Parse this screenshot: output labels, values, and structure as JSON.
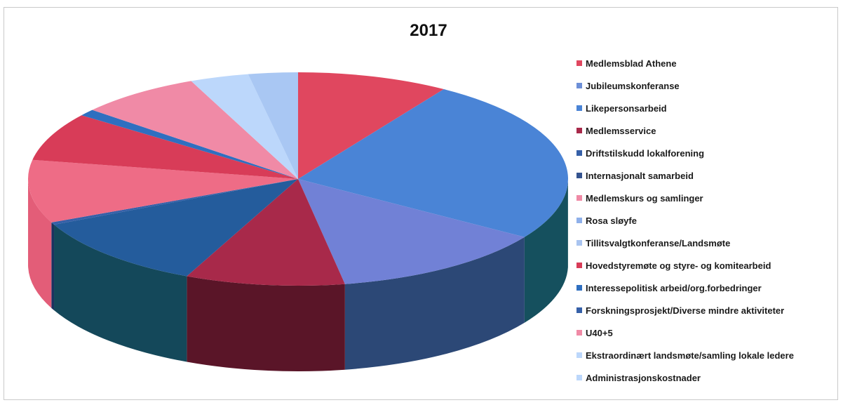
{
  "chart_data": {
    "type": "pie",
    "title": "2017",
    "legend_position": "right",
    "series": [
      {
        "name": "Medlemsblad Athene",
        "value": 9.8,
        "color": "#e0475f",
        "side": "#7e1a2c"
      },
      {
        "name": "Jubileumskonferanse",
        "value": 0.0,
        "color": "#6d8fd7",
        "side": "#2c4876"
      },
      {
        "name": "Likepersonsarbeid",
        "value": 27.1,
        "color": "#4a84d6",
        "side": "#15505e"
      },
      {
        "name": "Medlemsservice",
        "value": 0.0,
        "color": "#a8294a",
        "side": "#5a1528"
      },
      {
        "name": "Driftstilskudd lokalforening",
        "value": 0.0,
        "color": "#3660a8",
        "side": "#1c3360"
      },
      {
        "name": "Internasjonalt samarbeid",
        "value": 0.0,
        "color": "#34538f",
        "side": "#1c2e55"
      },
      {
        "name": "Medlemskurs og samlinger",
        "value": 14.1,
        "color": "#7181d6",
        "side": "#2c4876"
      },
      {
        "name": "Rosa sløyfe",
        "value": 0.0,
        "color": "#8fb0ea",
        "side": "#4d6690"
      },
      {
        "name": "Tillitsvalgtkonferanse/Landsmøte",
        "value": 0.0,
        "color": "#a9c4f0",
        "side": "#5f7596"
      },
      {
        "name": "Hovedstyremøte og styre- og komitearbeid",
        "value": 10.3,
        "color": "#a8294a",
        "side": "#5a1528"
      },
      {
        "name": "Interessepolitisk arbeid/org.forbedringer",
        "value": 12.1,
        "color": "#245c9c",
        "side": "#14485a"
      },
      {
        "name": "Forskningsprosjekt/Diverse mindre aktiviteter",
        "value": 0.4,
        "color": "#3660a8",
        "side": "#1c3360"
      },
      {
        "name": "U40+5",
        "value": 10.3,
        "color": "#ee6c86",
        "side": "#e35d78"
      },
      {
        "name": "Ekstraordinært landsmøte/samling lokale ledere",
        "value": 7.9,
        "color": "#d83c58",
        "side": "#a32a40"
      },
      {
        "name": "Administrasjonskostnader",
        "value": 1.1,
        "color": "#2f6fc0",
        "side": "#1c3a6b"
      },
      {
        "name": "",
        "value": 7.9,
        "color": "#f08aa6",
        "side": "#c0607a"
      },
      {
        "name": "",
        "value": 3.8,
        "color": "#bcd7fb",
        "side": "#8aa4c4"
      },
      {
        "name": "",
        "value": 3.2,
        "color": "#a9c7f3",
        "side": "#7f98c0"
      }
    ],
    "legend": [
      {
        "label": "Medlemsblad Athene",
        "color": "#e0475f"
      },
      {
        "label": "Jubileumskonferanse",
        "color": "#6d8fd7"
      },
      {
        "label": "Likepersonsarbeid",
        "color": "#4a84d6"
      },
      {
        "label": "Medlemsservice",
        "color": "#a8294a"
      },
      {
        "label": "Driftstilskudd lokalforening",
        "color": "#3660a8"
      },
      {
        "label": "Internasjonalt samarbeid",
        "color": "#34538f"
      },
      {
        "label": "Medlemskurs og samlinger",
        "color": "#f08aa6"
      },
      {
        "label": "Rosa sløyfe",
        "color": "#8fb0ea"
      },
      {
        "label": "Tillitsvalgtkonferanse/Landsmøte",
        "color": "#a9c4f0"
      },
      {
        "label": "Hovedstyremøte og styre- og komitearbeid",
        "color": "#d83c58"
      },
      {
        "label": "Interessepolitisk arbeid/org.forbedringer",
        "color": "#2f6fc0"
      },
      {
        "label": "Forskningsprosjekt/Diverse mindre aktiviteter",
        "color": "#3660a8"
      },
      {
        "label": "U40+5",
        "color": "#f08aa6"
      },
      {
        "label": "Ekstraordinært landsmøte/samling lokale ledere",
        "color": "#bcd7fb"
      },
      {
        "label": "Administrasjonskostnader",
        "color": "#bcd7fb"
      }
    ]
  }
}
